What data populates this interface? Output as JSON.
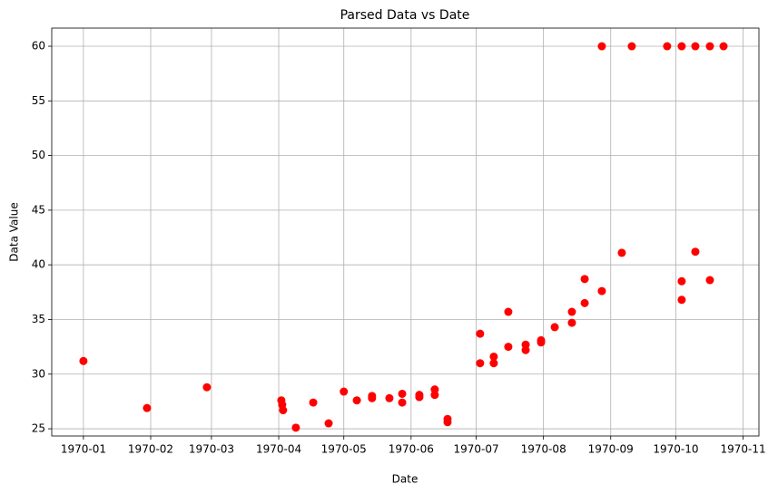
{
  "chart_data": {
    "type": "scatter",
    "title": "Parsed Data vs Date",
    "x_label": "Date",
    "y_label": "Data Value",
    "series": [
      {
        "color": "#ff0000",
        "x": [
          0,
          29.3,
          56.9,
          91.2,
          91.6,
          92,
          97.9,
          105.9,
          113,
          120,
          126,
          133,
          133,
          141,
          146.9,
          146.9,
          154.8,
          154.8,
          161.9,
          161.9,
          167.8,
          167.8,
          182.8,
          182.8,
          189.1,
          189.1,
          195.8,
          195.8,
          203.8,
          203.8,
          210.9,
          210.9,
          217.2,
          225.1,
          225.1,
          231,
          231,
          238.9,
          238.9,
          248.1,
          252.7,
          269,
          275.7,
          275.7,
          275.7,
          282,
          282,
          288.7,
          288.7,
          295
        ],
        "values": [
          31.2,
          26.9,
          28.8,
          27.6,
          27.2,
          26.7,
          25.1,
          27.4,
          25.5,
          28.4,
          27.6,
          28.0,
          27.8,
          27.8,
          28.2,
          27.4,
          27.9,
          28.1,
          28.1,
          28.6,
          25.9,
          25.6,
          33.7,
          31.0,
          31.6,
          31.0,
          35.7,
          32.5,
          32.7,
          32.2,
          33.1,
          32.9,
          34.3,
          35.7,
          34.7,
          38.7,
          36.5,
          37.6,
          60,
          41.1,
          60,
          60,
          38.5,
          36.8,
          60,
          41.2,
          60,
          38.6,
          60,
          60
        ]
      }
    ],
    "xlim": [
      -14.6,
      311.3
    ],
    "xticks": [
      {
        "value": 0,
        "label": "1970-01"
      },
      {
        "value": 31,
        "label": "1970-02"
      },
      {
        "value": 59,
        "label": "1970-03"
      },
      {
        "value": 90,
        "label": "1970-04"
      },
      {
        "value": 120,
        "label": "1970-05"
      },
      {
        "value": 151,
        "label": "1970-06"
      },
      {
        "value": 181,
        "label": "1970-07"
      },
      {
        "value": 212,
        "label": "1970-08"
      },
      {
        "value": 243,
        "label": "1970-09"
      },
      {
        "value": 273,
        "label": "1970-10"
      },
      {
        "value": 304,
        "label": "1970-11"
      }
    ],
    "ylim": [
      24.34,
      61.66
    ],
    "yticks": [
      25,
      30,
      35,
      40,
      45,
      50,
      55,
      60
    ],
    "grid": true
  }
}
